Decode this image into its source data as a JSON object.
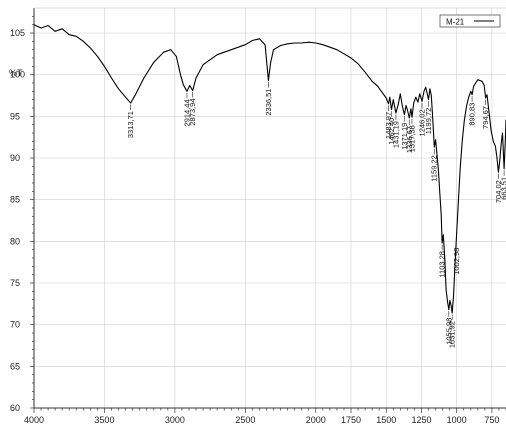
{
  "chart_data": {
    "type": "line",
    "title": "",
    "xlabel": "",
    "ylabel": "%T",
    "xlim": [
      4000,
      650
    ],
    "ylim": [
      60,
      108
    ],
    "x_ticks": [
      4000,
      3500,
      3000,
      2500,
      2000,
      1750,
      1500,
      1250,
      1000,
      750
    ],
    "y_ticks": [
      60,
      65,
      70,
      75,
      80,
      85,
      90,
      95,
      100,
      105
    ],
    "grid": true,
    "legend_position": "top-right",
    "series": [
      {
        "name": "M-21",
        "color": "#000000",
        "points": [
          [
            4000,
            106.0
          ],
          [
            3950,
            105.6
          ],
          [
            3900,
            105.9
          ],
          [
            3850,
            105.2
          ],
          [
            3800,
            105.5
          ],
          [
            3750,
            104.8
          ],
          [
            3700,
            104.6
          ],
          [
            3650,
            104.0
          ],
          [
            3600,
            103.2
          ],
          [
            3550,
            102.2
          ],
          [
            3500,
            101.0
          ],
          [
            3450,
            99.6
          ],
          [
            3400,
            98.3
          ],
          [
            3350,
            97.3
          ],
          [
            3313.71,
            96.6
          ],
          [
            3280,
            97.6
          ],
          [
            3220,
            99.6
          ],
          [
            3150,
            101.5
          ],
          [
            3080,
            102.7
          ],
          [
            3030,
            103.0
          ],
          [
            2990,
            102.2
          ],
          [
            2960,
            100.0
          ],
          [
            2940,
            98.8
          ],
          [
            2914.44,
            98.0
          ],
          [
            2895,
            98.7
          ],
          [
            2873.94,
            98.1
          ],
          [
            2850,
            99.6
          ],
          [
            2800,
            101.2
          ],
          [
            2700,
            102.4
          ],
          [
            2600,
            103.0
          ],
          [
            2500,
            103.6
          ],
          [
            2450,
            104.1
          ],
          [
            2400,
            104.3
          ],
          [
            2360,
            103.6
          ],
          [
            2336.51,
            99.3
          ],
          [
            2320,
            101.5
          ],
          [
            2300,
            103.0
          ],
          [
            2250,
            103.5
          ],
          [
            2200,
            103.7
          ],
          [
            2150,
            103.8
          ],
          [
            2100,
            103.8
          ],
          [
            2050,
            103.9
          ],
          [
            2000,
            103.8
          ],
          [
            1950,
            103.6
          ],
          [
            1900,
            103.3
          ],
          [
            1850,
            103.0
          ],
          [
            1800,
            102.5
          ],
          [
            1750,
            102.0
          ],
          [
            1700,
            101.3
          ],
          [
            1650,
            100.3
          ],
          [
            1600,
            99.2
          ],
          [
            1560,
            98.6
          ],
          [
            1530,
            97.9
          ],
          [
            1500,
            97.2
          ],
          [
            1483.97,
            96.5
          ],
          [
            1475,
            97.3
          ],
          [
            1462.4,
            95.8
          ],
          [
            1450,
            97.0
          ],
          [
            1431.19,
            95.4
          ],
          [
            1415,
            96.4
          ],
          [
            1400,
            97.7
          ],
          [
            1385,
            96.2
          ],
          [
            1371.19,
            95.2
          ],
          [
            1360,
            96.3
          ],
          [
            1350,
            95.8
          ],
          [
            1336.67,
            94.8
          ],
          [
            1325,
            95.9
          ],
          [
            1317.38,
            94.9
          ],
          [
            1305,
            96.6
          ],
          [
            1290,
            97.3
          ],
          [
            1275,
            96.7
          ],
          [
            1262,
            97.7
          ],
          [
            1246.02,
            96.8
          ],
          [
            1232,
            98.0
          ],
          [
            1220,
            98.5
          ],
          [
            1210,
            97.8
          ],
          [
            1199.72,
            97.0
          ],
          [
            1190,
            98.3
          ],
          [
            1180,
            97.5
          ],
          [
            1170,
            94.8
          ],
          [
            1159.22,
            91.3
          ],
          [
            1150,
            92.2
          ],
          [
            1140,
            90.4
          ],
          [
            1130,
            88.6
          ],
          [
            1120,
            85.8
          ],
          [
            1110,
            83.2
          ],
          [
            1103.28,
            79.8
          ],
          [
            1095,
            80.8
          ],
          [
            1085,
            78.1
          ],
          [
            1075,
            74.2
          ],
          [
            1065,
            72.8
          ],
          [
            1055.98,
            71.8
          ],
          [
            1048,
            72.9
          ],
          [
            1040,
            72.3
          ],
          [
            1031.92,
            71.4
          ],
          [
            1022,
            73.6
          ],
          [
            1012,
            77.2
          ],
          [
            1002.98,
            80.2
          ],
          [
            990,
            84.2
          ],
          [
            975,
            88.8
          ],
          [
            960,
            92.1
          ],
          [
            945,
            94.6
          ],
          [
            930,
            96.2
          ],
          [
            915,
            97.3
          ],
          [
            900,
            98.0
          ],
          [
            890.83,
            97.6
          ],
          [
            880,
            98.6
          ],
          [
            865,
            99.0
          ],
          [
            850,
            99.4
          ],
          [
            835,
            99.3
          ],
          [
            820,
            99.2
          ],
          [
            805,
            98.7
          ],
          [
            794.67,
            97.2
          ],
          [
            785,
            97.6
          ],
          [
            770,
            95.4
          ],
          [
            755,
            93.2
          ],
          [
            740,
            92.0
          ],
          [
            725,
            91.4
          ],
          [
            715,
            90.2
          ],
          [
            704.02,
            88.3
          ],
          [
            695,
            89.6
          ],
          [
            685,
            91.6
          ],
          [
            675,
            93.0
          ],
          [
            663.51,
            88.7
          ],
          [
            655,
            92.0
          ],
          [
            650,
            94.6
          ]
        ]
      }
    ],
    "annotations": [
      {
        "label": "3313,71",
        "x": 3313.71,
        "y": 96.6
      },
      {
        "label": "2914,44",
        "x": 2914.44,
        "y": 98.0
      },
      {
        "label": "2873,94",
        "x": 2873.94,
        "y": 98.1
      },
      {
        "label": "2336,51",
        "x": 2336.51,
        "y": 99.3
      },
      {
        "label": "1483,97",
        "x": 1483.97,
        "y": 96.5
      },
      {
        "label": "1462,40",
        "x": 1462.4,
        "y": 95.8
      },
      {
        "label": "1431,19",
        "x": 1431.19,
        "y": 95.4
      },
      {
        "label": "1371,19",
        "x": 1371.19,
        "y": 95.2
      },
      {
        "label": "1336,67",
        "x": 1336.67,
        "y": 94.8
      },
      {
        "label": "1317,38",
        "x": 1317.38,
        "y": 94.9
      },
      {
        "label": "1246,02",
        "x": 1246.02,
        "y": 96.8
      },
      {
        "label": "1199,72",
        "x": 1199.72,
        "y": 97.0
      },
      {
        "label": "1159,22",
        "x": 1159.22,
        "y": 91.3
      },
      {
        "label": "1103,28",
        "x": 1103.28,
        "y": 79.8
      },
      {
        "label": "1055,98",
        "x": 1055.98,
        "y": 71.8
      },
      {
        "label": "1031,92",
        "x": 1031.92,
        "y": 71.4
      },
      {
        "label": "1002,98",
        "x": 1002.98,
        "y": 80.2
      },
      {
        "label": "890,83",
        "x": 890.83,
        "y": 97.6
      },
      {
        "label": "794,67",
        "x": 794.67,
        "y": 97.2
      },
      {
        "label": "704,02",
        "x": 704.02,
        "y": 88.3
      },
      {
        "label": "663,51",
        "x": 663.51,
        "y": 88.7
      }
    ]
  }
}
